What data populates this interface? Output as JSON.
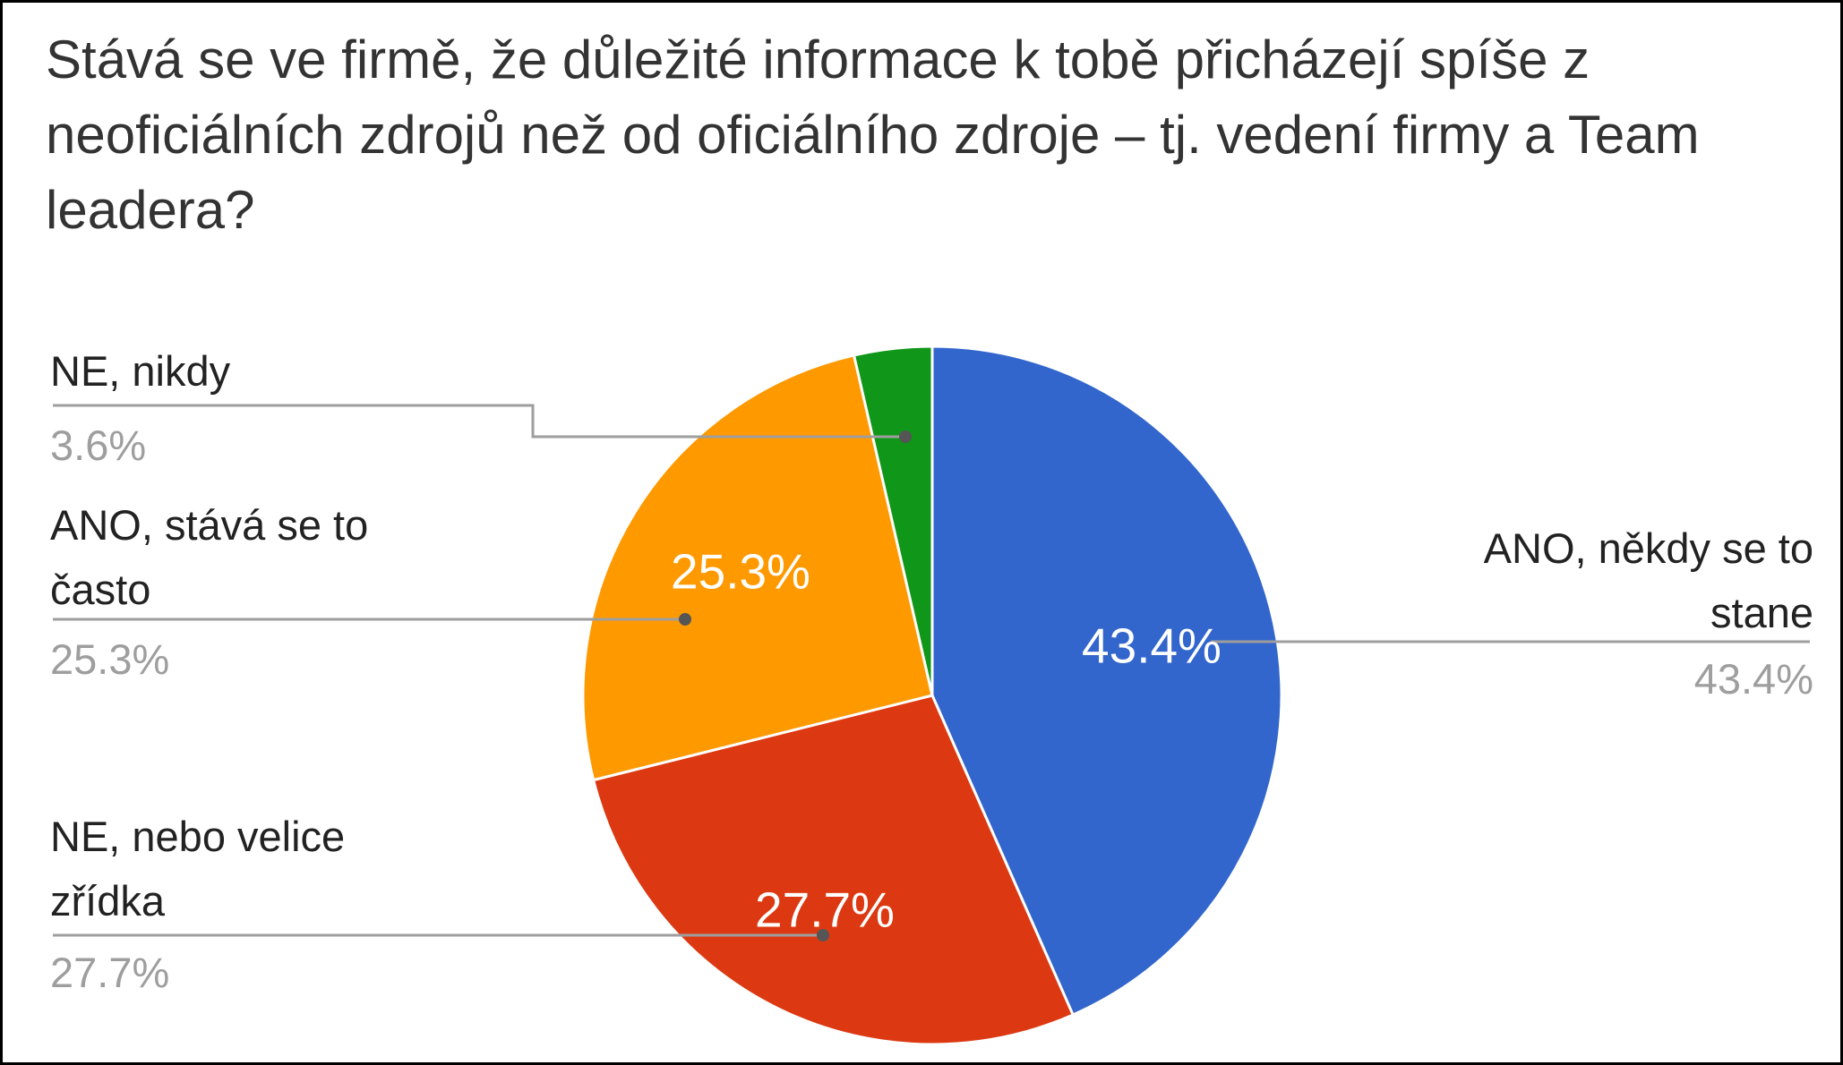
{
  "chart_data": {
    "type": "pie",
    "title": "Stává se ve firmě, že důležité informace k tobě přicházejí spíše z neoficiálních zdrojů než od oficiálního zdroje – tj. vedení firmy a Team leadera?",
    "categories": [
      "ANO, někdy se to stane",
      "NE, nebo velice zřídka",
      "ANO, stává se to často",
      "NE, nikdy"
    ],
    "values": [
      43.4,
      27.7,
      25.3,
      3.6
    ],
    "value_labels": [
      "43.4%",
      "27.7%",
      "25.3%",
      "3.6%"
    ],
    "colors": [
      "#3366cc",
      "#dc3912",
      "#ff9900",
      "#109618"
    ]
  }
}
